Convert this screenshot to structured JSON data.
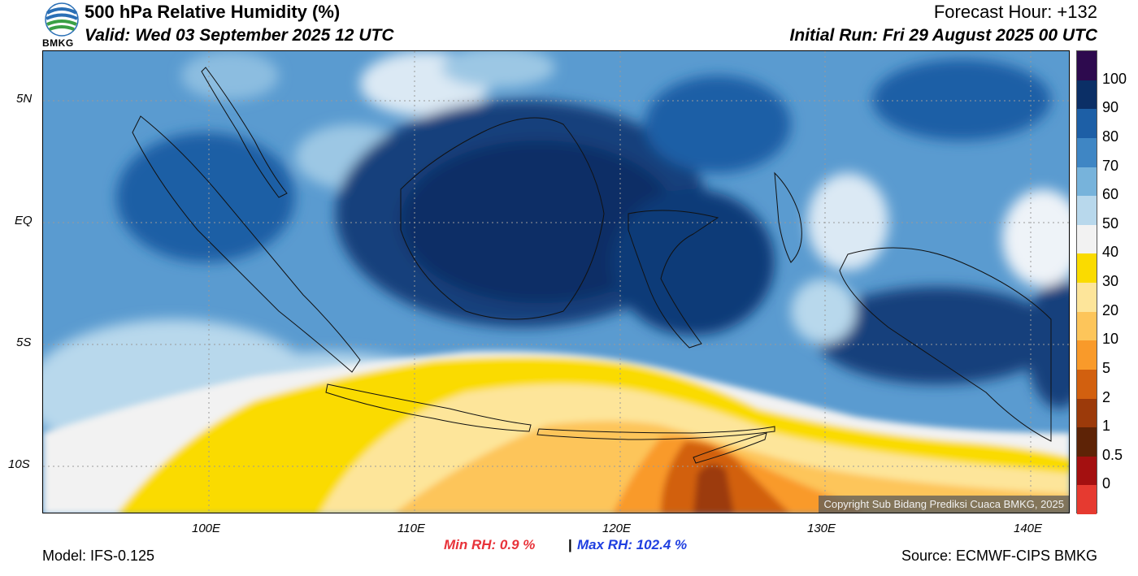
{
  "header": {
    "title": "500 hPa Relative Humidity (%)",
    "valid": "Valid: Wed 03 September 2025 12 UTC",
    "forecast_hour": "Forecast Hour: +132",
    "initial_run": "Initial Run: Fri 29 August 2025 00 UTC"
  },
  "logo": {
    "text": "BMKG",
    "icon": "bmkg-logo"
  },
  "map": {
    "lat_labels": [
      "5N",
      "EQ",
      "5S",
      "10S"
    ],
    "lon_labels": [
      "100E",
      "110E",
      "120E",
      "130E",
      "140E"
    ],
    "extent": {
      "lon": [
        92,
        142
      ],
      "lat": [
        -12,
        7
      ]
    },
    "copyright": "Copyright Sub Bidang Prediksi Cuaca BMKG, 2025"
  },
  "colorbar": {
    "labels": [
      "100",
      "90",
      "80",
      "70",
      "60",
      "50",
      "40",
      "30",
      "20",
      "10",
      "5",
      "2",
      "1",
      "0.5",
      "0"
    ],
    "colors": [
      "#2d0a4e",
      "#0b2f66",
      "#1d5fa6",
      "#3f86c4",
      "#77b3db",
      "#b8d8ec",
      "#f2f2f2",
      "#fadb00",
      "#fde59a",
      "#fdc55a",
      "#f99a2a",
      "#d2600f",
      "#9c3a0a",
      "#5e2306",
      "#a41010",
      "#e63a30"
    ]
  },
  "footer": {
    "model": "Model: IFS-0.125",
    "min_rh": "Min RH:   0.9 %",
    "separator": "|",
    "max_rh": "Max RH: 102.4 %",
    "source": "Source: ECMWF-CIPS BMKG"
  },
  "colors": {
    "min_rh": "#e8333a",
    "max_rh": "#1f3fe0"
  }
}
